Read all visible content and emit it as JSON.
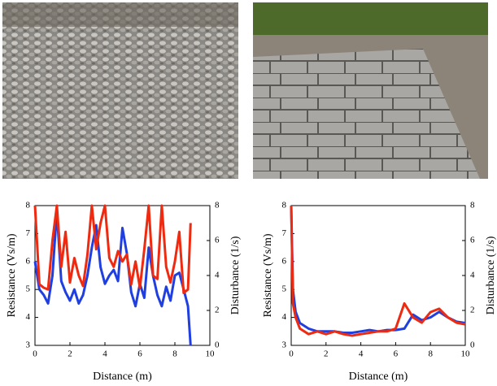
{
  "chart_data": [
    {
      "type": "line",
      "xlabel": "Distance (m)",
      "ylabel": "Resistance (Vs/m)",
      "y2label": "Disturbance (1/s)",
      "xlim": [
        0,
        10
      ],
      "xticks": [
        0,
        2,
        4,
        6,
        8,
        10
      ],
      "ylim": [
        3,
        8
      ],
      "yticks": [
        3,
        4,
        5,
        6,
        7,
        8
      ],
      "y2lim": [
        0,
        8
      ],
      "y2ticks": [
        0,
        2,
        4,
        6,
        8
      ],
      "x": [
        0,
        0.25,
        0.5,
        0.75,
        1,
        1.25,
        1.5,
        1.75,
        2,
        2.25,
        2.5,
        2.75,
        3,
        3.25,
        3.5,
        3.75,
        4,
        4.25,
        4.5,
        4.75,
        5,
        5.25,
        5.5,
        5.75,
        6,
        6.25,
        6.5,
        6.75,
        7,
        7.25,
        7.5,
        7.75,
        8,
        8.25,
        8.5,
        8.75,
        8.9
      ],
      "series": [
        {
          "color": "#1f3fe0",
          "values": [
            6,
            5,
            4.8,
            4.5,
            5.5,
            7.8,
            5.3,
            4.9,
            4.6,
            5,
            4.5,
            4.8,
            5.5,
            6.5,
            7.3,
            5.8,
            5.2,
            5.5,
            5.7,
            5.3,
            7.2,
            6.3,
            4.9,
            4.4,
            5.2,
            4.7,
            6.5,
            5.5,
            4.8,
            4.4,
            5.1,
            4.6,
            5.5,
            5.6,
            5,
            4.4,
            3
          ]
        },
        {
          "color": "#ee2a10",
          "axis": "y2",
          "values": [
            8,
            3.5,
            3.3,
            3.2,
            6,
            8,
            4.5,
            6.5,
            3.6,
            5,
            4,
            3.4,
            5.2,
            8,
            5.5,
            7,
            8,
            5,
            4.5,
            5.4,
            4.8,
            5.2,
            3.5,
            4.8,
            3.3,
            5.5,
            8,
            4,
            3.8,
            8,
            4.5,
            3.6,
            4.8,
            6.5,
            3,
            3.2,
            7
          ]
        }
      ]
    },
    {
      "type": "line",
      "xlabel": "Distance (m)",
      "ylabel": "Resistance (Vs/m)",
      "y2label": "Disturbance (1/s)",
      "xlim": [
        0,
        10
      ],
      "xticks": [
        0,
        2,
        4,
        6,
        8,
        10
      ],
      "ylim": [
        3,
        8
      ],
      "yticks": [
        3,
        4,
        5,
        6,
        7,
        8
      ],
      "y2lim": [
        0,
        8
      ],
      "y2ticks": [
        0,
        2,
        4,
        6,
        8
      ],
      "x": [
        0,
        0.1,
        0.25,
        0.5,
        1,
        1.5,
        2,
        2.5,
        3,
        3.5,
        4,
        4.5,
        5,
        5.5,
        6,
        6.5,
        7,
        7.5,
        8,
        8.5,
        9,
        9.5,
        10
      ],
      "series": [
        {
          "color": "#1f3fe0",
          "values": [
            8,
            5,
            4.2,
            3.8,
            3.6,
            3.5,
            3.5,
            3.5,
            3.45,
            3.45,
            3.5,
            3.55,
            3.5,
            3.55,
            3.55,
            3.6,
            4.1,
            3.9,
            4,
            4.2,
            4,
            3.85,
            3.8
          ]
        },
        {
          "color": "#ee2a10",
          "axis": "y2",
          "values": [
            8,
            2.4,
            1.6,
            0.96,
            0.64,
            0.8,
            0.64,
            0.8,
            0.64,
            0.56,
            0.64,
            0.72,
            0.8,
            0.8,
            0.96,
            2.4,
            1.6,
            1.3,
            1.9,
            2.1,
            1.6,
            1.3,
            1.2
          ]
        }
      ]
    }
  ]
}
